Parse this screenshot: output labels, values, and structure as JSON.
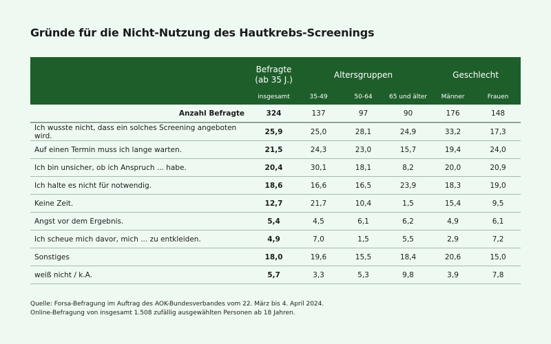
{
  "title": "Gründe für die Nicht-Nutzung des Hautkrebs-Screenings",
  "colors": {
    "header_bg": "#1e5e2a",
    "background": "#eefaf1",
    "row_line": "#a7b8ac"
  },
  "chart_data": {
    "type": "table",
    "title": "Gründe für die Nicht-Nutzung des Hautkrebs-Screenings",
    "group_headers": {
      "total": "Befragte (ab 35 J.)",
      "age": "Altersgruppen",
      "gender": "Geschlecht"
    },
    "columns": [
      "insgesamt",
      "35-49",
      "50-64",
      "65 und älter",
      "Männer",
      "Frauen"
    ],
    "count_row": {
      "label": "Anzahl Befragte",
      "values": [
        "324",
        "137",
        "97",
        "90",
        "176",
        "148"
      ]
    },
    "rows": [
      {
        "label": "Ich wusste nicht, dass ein solches Screening angeboten wird.",
        "values": [
          "25,9",
          "25,0",
          "28,1",
          "24,9",
          "33,2",
          "17,3"
        ]
      },
      {
        "label": "Auf einen Termin muss ich lange warten.",
        "values": [
          "21,5",
          "24,3",
          "23,0",
          "15,7",
          "19,4",
          "24,0"
        ]
      },
      {
        "label": "Ich bin unsicher, ob ich Anspruch ... habe.",
        "values": [
          "20,4",
          "30,1",
          "18,1",
          "8,2",
          "20,0",
          "20,9"
        ]
      },
      {
        "label": "Ich halte es nicht für notwendig.",
        "values": [
          "18,6",
          "16,6",
          "16,5",
          "23,9",
          "18,3",
          "19,0"
        ]
      },
      {
        "label": "Keine Zeit.",
        "values": [
          "12,7",
          "21,7",
          "10,4",
          "1,5",
          "15,4",
          "9,5"
        ]
      },
      {
        "label": "Angst vor dem Ergebnis.",
        "values": [
          "5,4",
          "4,5",
          "6,1",
          "6,2",
          "4,9",
          "6,1"
        ]
      },
      {
        "label": "Ich scheue mich davor, mich ... zu entkleiden.",
        "values": [
          "4,9",
          "7,0",
          "1,5",
          "5,5",
          "2,9",
          "7,2"
        ]
      },
      {
        "label": "Sonstiges",
        "values": [
          "18,0",
          "19,6",
          "15,5",
          "18,4",
          "20,6",
          "15,0"
        ]
      },
      {
        "label": "weiß nicht / k.A.",
        "values": [
          "5,7",
          "3,3",
          "5,3",
          "9,8",
          "3,9",
          "7,8"
        ]
      }
    ]
  },
  "source": {
    "line1": "Quelle: Forsa-Befragung im Auftrag des AOK-Bundesverbandes vom 22. März bis 4. April 2024.",
    "line2": "Online-Befragung von insgesamt 1.508 zufällig ausgewählten Personen ab 18 Jahren."
  }
}
